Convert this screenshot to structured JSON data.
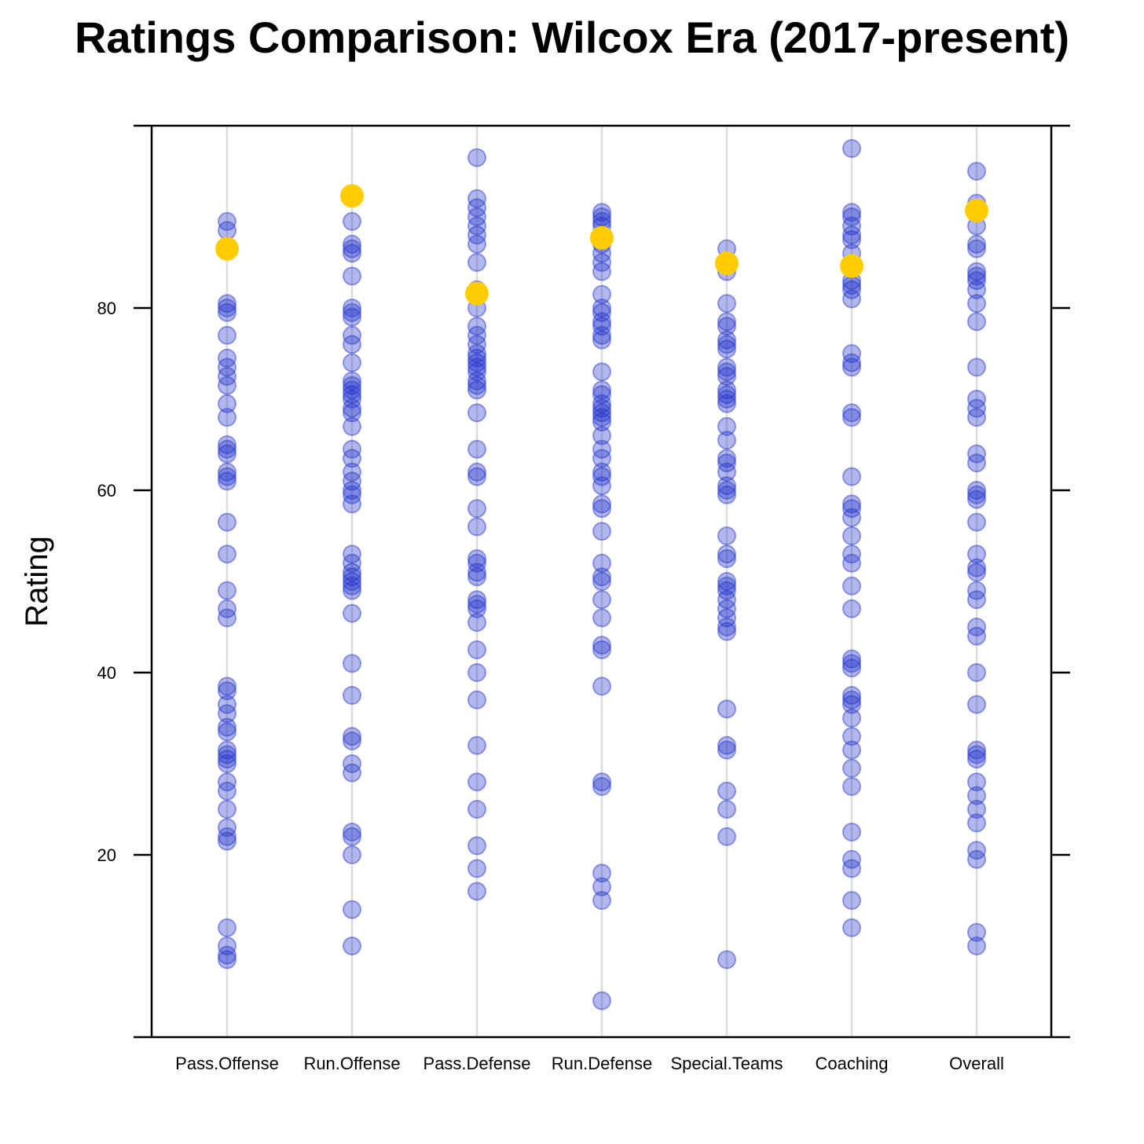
{
  "chart_data": {
    "type": "scatter",
    "title": "Ratings Comparison: Wilcox Era (2017-present)",
    "xlabel": "",
    "ylabel": "Rating",
    "yticks": [
      20,
      40,
      60,
      80
    ],
    "ylim": [
      0,
      100
    ],
    "colors": {
      "points": "#2233cc",
      "highlight": "#ffcc00",
      "guide": "#dcdcdc"
    },
    "categories": [
      "Pass.Offense",
      "Run.Offense",
      "Pass.Defense",
      "Run.Defense",
      "Special.Teams",
      "Coaching",
      "Overall"
    ],
    "highlight": [
      86.5,
      92.3,
      81.6,
      87.7,
      84.9,
      84.6,
      90.7
    ],
    "series": [
      {
        "name": "Pass.Offense",
        "values": [
          89.5,
          88.5,
          80.5,
          80,
          79.5,
          77,
          74.5,
          73.5,
          72.5,
          71.5,
          69.5,
          68,
          65,
          64.5,
          64,
          62,
          61.5,
          61,
          56.5,
          53,
          49,
          47,
          46,
          38.5,
          38,
          36.5,
          35.5,
          34,
          33.5,
          31.5,
          31,
          30.5,
          30,
          28,
          27,
          25,
          23,
          22,
          21.5,
          12,
          10,
          9,
          8.5
        ]
      },
      {
        "name": "Run.Offense",
        "values": [
          89.5,
          87,
          86.5,
          86,
          83.5,
          80,
          79.5,
          79,
          77,
          76,
          74,
          72,
          71.5,
          71,
          70.5,
          70,
          69,
          68.5,
          67,
          64.5,
          63.5,
          62,
          61,
          60,
          59.5,
          58.5,
          53,
          52,
          51,
          50.5,
          50,
          49.5,
          49,
          46.5,
          41,
          37.5,
          33,
          32.5,
          30,
          29,
          22.5,
          22,
          20,
          14,
          10
        ]
      },
      {
        "name": "Pass.Defense",
        "values": [
          96.5,
          92,
          91,
          90,
          89,
          88,
          87,
          85,
          82,
          80,
          78,
          77,
          76,
          75,
          74.5,
          74,
          73.5,
          73,
          72,
          71.5,
          71,
          68.5,
          64.5,
          62,
          61.5,
          58,
          56,
          52.5,
          52,
          51,
          50.5,
          48,
          47.5,
          47,
          45.5,
          42.5,
          40,
          37,
          32,
          28,
          25,
          21,
          18.5,
          16
        ]
      },
      {
        "name": "Run.Defense",
        "values": [
          90.5,
          90,
          89.5,
          89,
          88,
          87,
          86,
          85,
          84,
          81.5,
          80,
          79.5,
          78.5,
          78,
          77,
          76.5,
          73,
          71,
          70.5,
          69.5,
          69,
          68.5,
          68,
          67.5,
          66,
          64.5,
          63.5,
          62,
          61.5,
          60.5,
          58.5,
          58,
          55.5,
          52,
          50.5,
          50,
          48,
          46,
          43,
          42.5,
          38.5,
          28,
          27.5,
          18,
          16.5,
          15,
          4
        ]
      },
      {
        "name": "Special.Teams",
        "values": [
          86.5,
          84,
          80.5,
          78.5,
          78,
          76.5,
          76,
          75.5,
          73.5,
          73,
          72.5,
          71,
          70.5,
          70,
          69.5,
          67,
          65.5,
          63.5,
          63,
          62,
          60.5,
          60,
          59.5,
          55,
          53,
          52.5,
          50,
          49.5,
          49,
          48,
          47,
          46,
          45,
          44.5,
          36,
          32,
          31.5,
          27,
          25,
          22,
          8.5
        ]
      },
      {
        "name": "Coaching",
        "values": [
          97.5,
          90.5,
          90,
          89,
          88,
          87.5,
          86,
          83,
          82.5,
          82,
          81,
          75,
          74,
          73.5,
          68.5,
          68,
          61.5,
          58.5,
          58,
          57,
          55,
          53,
          52,
          49.5,
          47,
          41.5,
          41,
          40.5,
          37.5,
          37,
          36.5,
          35,
          33,
          31.5,
          29.5,
          27.5,
          22.5,
          19.5,
          18.5,
          15,
          12
        ]
      },
      {
        "name": "Overall",
        "values": [
          95,
          91.5,
          89,
          87,
          86.5,
          84,
          83.5,
          83,
          82,
          80.5,
          78.5,
          73.5,
          70,
          69,
          68,
          64,
          63,
          60,
          59.5,
          59,
          56.5,
          53,
          51.5,
          51,
          49,
          48,
          45,
          44,
          40,
          36.5,
          31.5,
          31,
          30.5,
          28,
          26.5,
          25,
          23.5,
          20.5,
          19.5,
          11.5,
          10
        ]
      }
    ]
  }
}
